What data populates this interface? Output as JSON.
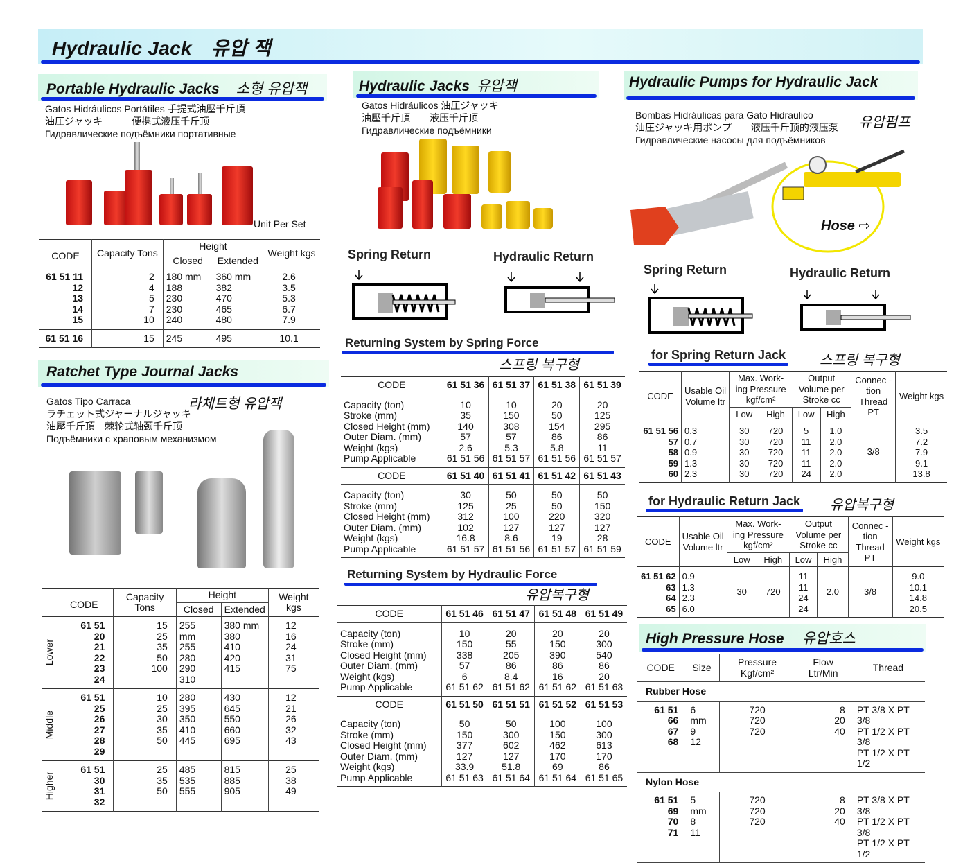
{
  "banner": {
    "title": "Hydraulic Jack",
    "title_kr": "유압 잭"
  },
  "portable": {
    "title": "Portable Hydraulic Jacks",
    "title_kr": "소형 유압잭",
    "sub": [
      "Gatos Hidráulicos Portátiles 手提式油壓千斤頂",
      "油圧ジャッキ　　　便携式液压千斤顶",
      "Гидравлические подъёмники портативные"
    ],
    "unit_note": "Unit Per Set",
    "headers": {
      "code": "CODE",
      "capacity": "Capacity Tons",
      "height": "Height",
      "closed": "Closed",
      "extended": "Extended",
      "weight": "Weight kgs"
    },
    "groups": [
      {
        "rows": [
          {
            "code": "61 51 11",
            "capacity": "2",
            "closed": "180 mm",
            "extended": "360 mm",
            "weight": "2.6"
          },
          {
            "code": "12",
            "capacity": "4",
            "closed": "188",
            "extended": "382",
            "weight": "3.5"
          },
          {
            "code": "13",
            "capacity": "5",
            "closed": "230",
            "extended": "470",
            "weight": "5.3"
          },
          {
            "code": "14",
            "capacity": "7",
            "closed": "230",
            "extended": "465",
            "weight": "6.7"
          },
          {
            "code": "15",
            "capacity": "10",
            "closed": "240",
            "extended": "480",
            "weight": "7.9"
          }
        ]
      },
      {
        "rows": [
          {
            "code": "61 51 16",
            "capacity": "15",
            "closed": "245",
            "extended": "495",
            "weight": "10.1"
          }
        ]
      }
    ]
  },
  "ratchet": {
    "title": "Ratchet Type Journal Jacks",
    "title_kr": "라체트형 유압잭",
    "sub": [
      "Gatos Tipo Carraca",
      "ラチェット式ジャーナルジャッキ",
      "油壓千斤頂　棘轮式轴颈千斤顶",
      "Подъёмники с храповым механизмом"
    ],
    "headers": {
      "code": "CODE",
      "capacity": "Capacity Tons",
      "height": "Height",
      "closed": "Closed",
      "extended": "Extended",
      "weight": "Weight kgs"
    },
    "groups": [
      {
        "label": "Lower",
        "rows": [
          {
            "code": "61 51 20",
            "capacity": "15",
            "closed": "255 mm",
            "extended": "380 mm",
            "weight": "12"
          },
          {
            "code": "21",
            "capacity": "25",
            "closed": "255",
            "extended": "380",
            "weight": "16"
          },
          {
            "code": "22",
            "capacity": "35",
            "closed": "280",
            "extended": "410",
            "weight": "24"
          },
          {
            "code": "23",
            "capacity": "50",
            "closed": "290",
            "extended": "420",
            "weight": "31"
          },
          {
            "code": "24",
            "capacity": "100",
            "closed": "310",
            "extended": "415",
            "weight": "75"
          }
        ]
      },
      {
        "label": "Middle",
        "rows": [
          {
            "code": "61 51 25",
            "capacity": "10",
            "closed": "280",
            "extended": "430",
            "weight": "12"
          },
          {
            "code": "26",
            "capacity": "25",
            "closed": "395",
            "extended": "645",
            "weight": "21"
          },
          {
            "code": "27",
            "capacity": "30",
            "closed": "350",
            "extended": "550",
            "weight": "26"
          },
          {
            "code": "28",
            "capacity": "35",
            "closed": "410",
            "extended": "660",
            "weight": "32"
          },
          {
            "code": "29",
            "capacity": "50",
            "closed": "445",
            "extended": "695",
            "weight": "43"
          }
        ]
      },
      {
        "label": "Higher",
        "rows": [
          {
            "code": "61 51 30",
            "capacity": "25",
            "closed": "485",
            "extended": "815",
            "weight": "25"
          },
          {
            "code": "31",
            "capacity": "35",
            "closed": "535",
            "extended": "885",
            "weight": "38"
          },
          {
            "code": "32",
            "capacity": "50",
            "closed": "555",
            "extended": "905",
            "weight": "49"
          }
        ]
      }
    ]
  },
  "jacks": {
    "title": "Hydraulic Jacks",
    "title_kr": "유압잭",
    "sub": [
      "Gatos Hidráulicos 油圧ジャッキ",
      "油壓千斤頂　　液压千斤顶",
      "Гидравлические подъёмники"
    ],
    "spring_return": "Spring Return",
    "hydraulic_return": "Hydraulic Return",
    "row_labels": [
      "Capacity (ton)",
      "Stroke (mm)",
      "Closed Height (mm)",
      "Outer Diam. (mm)",
      "Weight (kgs)",
      "Pump Applicable"
    ],
    "code_label": "CODE",
    "spring": {
      "title": "Returning System by Spring Force",
      "title_kr": "스프링 복구형",
      "blocks": [
        {
          "codes": [
            "61 51 36",
            "61 51 37",
            "61 51 38",
            "61 51 39"
          ],
          "cols": [
            [
              "10",
              "35",
              "140",
              "57",
              "2.6",
              "61 51 56"
            ],
            [
              "10",
              "150",
              "308",
              "57",
              "5.3",
              "61 51 57"
            ],
            [
              "20",
              "50",
              "154",
              "86",
              "5.8",
              "61 51 56"
            ],
            [
              "20",
              "125",
              "295",
              "86",
              "11",
              "61 51 57"
            ]
          ]
        },
        {
          "codes": [
            "61 51 40",
            "61 51 41",
            "61 51 42",
            "61 51 43"
          ],
          "cols": [
            [
              "30",
              "125",
              "312",
              "102",
              "16.8",
              "61 51 57"
            ],
            [
              "50",
              "25",
              "100",
              "127",
              "8.6",
              "61 51 56"
            ],
            [
              "50",
              "50",
              "220",
              "127",
              "19",
              "61 51 57"
            ],
            [
              "50",
              "150",
              "320",
              "127",
              "28",
              "61 51 59"
            ]
          ]
        }
      ]
    },
    "hydraulic": {
      "title": "Returning System by Hydraulic Force",
      "title_kr": "유압복구형",
      "blocks": [
        {
          "codes": [
            "61 51 46",
            "61 51 47",
            "61 51 48",
            "61 51 49"
          ],
          "cols": [
            [
              "10",
              "150",
              "338",
              "57",
              "6",
              "61 51 62"
            ],
            [
              "20",
              "55",
              "205",
              "86",
              "8.4",
              "61 51 62"
            ],
            [
              "20",
              "150",
              "390",
              "86",
              "16",
              "61 51 62"
            ],
            [
              "20",
              "300",
              "540",
              "86",
              "20",
              "61 51 63"
            ]
          ]
        },
        {
          "codes": [
            "61 51 50",
            "61 51 51",
            "61 51 52",
            "61 51 53"
          ],
          "cols": [
            [
              "50",
              "150",
              "377",
              "127",
              "33.9",
              "61 51 63"
            ],
            [
              "50",
              "300",
              "602",
              "127",
              "51.8",
              "61 51 64"
            ],
            [
              "100",
              "150",
              "462",
              "170",
              "69",
              "61 51 64"
            ],
            [
              "100",
              "300",
              "613",
              "170",
              "86",
              "61 51 65"
            ]
          ]
        }
      ]
    }
  },
  "pumps": {
    "title": "Hydraulic Pumps for Hydraulic Jack",
    "title_kr": "유압펌프",
    "sub": [
      "Bombas Hidráulicas para Gato Hidraulico",
      "油圧ジャッキ用ポンプ　　液压千斤顶的液压泵",
      "Гидравлические насосы для подъёмников"
    ],
    "hose_label": "Hose",
    "spring_return": "Spring Return",
    "hydraulic_return": "Hydraulic Return",
    "headers": {
      "code": "CODE",
      "oil": "Usable Oil Volume ltr",
      "pressure": "Max. Work-ing Pressure kgf/cm²",
      "output": "Output Volume per Stroke cc",
      "thread": "Connec -tion Thread PT",
      "weight": "Weight kgs",
      "low": "Low",
      "high": "High"
    },
    "spring": {
      "title": "for Spring Return Jack",
      "title_kr": "스프링 복구형",
      "thread": "3/8",
      "rows": [
        {
          "code": "61 51 56",
          "oil": "0.3",
          "p_low": "30",
          "p_high": "720",
          "v_low": "5",
          "v_high": "1.0",
          "weight": "3.5"
        },
        {
          "code": "57",
          "oil": "0.7",
          "p_low": "30",
          "p_high": "720",
          "v_low": "11",
          "v_high": "2.0",
          "weight": "7.2"
        },
        {
          "code": "58",
          "oil": "0.9",
          "p_low": "30",
          "p_high": "720",
          "v_low": "11",
          "v_high": "2.0",
          "weight": "7.9"
        },
        {
          "code": "59",
          "oil": "1.3",
          "p_low": "30",
          "p_high": "720",
          "v_low": "11",
          "v_high": "2.0",
          "weight": "9.1"
        },
        {
          "code": "60",
          "oil": "2.3",
          "p_low": "30",
          "p_high": "720",
          "v_low": "24",
          "v_high": "2.0",
          "weight": "13.8"
        }
      ]
    },
    "hydraulic": {
      "title": "for Hydraulic Return Jack",
      "title_kr": "유압복구형",
      "p_low": "30",
      "p_high": "720",
      "v_high": "2.0",
      "thread": "3/8",
      "rows": [
        {
          "code": "61 51 62",
          "oil": "0.9",
          "v_low": "11",
          "weight": "9.0"
        },
        {
          "code": "63",
          "oil": "1.3",
          "v_low": "11",
          "weight": "10.1"
        },
        {
          "code": "64",
          "oil": "2.3",
          "v_low": "24",
          "weight": "14.8"
        },
        {
          "code": "65",
          "oil": "6.0",
          "v_low": "24",
          "weight": "20.5"
        }
      ]
    }
  },
  "hose": {
    "title": "High Pressure Hose",
    "title_kr": "유압호스",
    "headers": {
      "code": "CODE",
      "size": "Size",
      "pressure": "Pressure Kgf/cm²",
      "flow": "Flow Ltr/Min",
      "thread": "Thread"
    },
    "groups": [
      {
        "label": "Rubber Hose",
        "rows": [
          {
            "code": "61 51 66",
            "size": "6 mm",
            "pressure": "720",
            "flow": "8",
            "thread": "PT 3/8 X PT 3/8"
          },
          {
            "code": "67",
            "size": "9",
            "pressure": "720",
            "flow": "20",
            "thread": "PT 1/2 X PT 3/8"
          },
          {
            "code": "68",
            "size": "12",
            "pressure": "720",
            "flow": "40",
            "thread": "PT 1/2 X PT 1/2"
          }
        ]
      },
      {
        "label": "Nylon Hose",
        "rows": [
          {
            "code": "61 51 69",
            "size": "5 mm",
            "pressure": "720",
            "flow": "8",
            "thread": "PT 3/8 X PT 3/8"
          },
          {
            "code": "70",
            "size": "8",
            "pressure": "720",
            "flow": "20",
            "thread": "PT 1/2 X PT 3/8"
          },
          {
            "code": "71",
            "size": "11",
            "pressure": "720",
            "flow": "40",
            "thread": "PT 1/2 X PT 1/2"
          }
        ]
      }
    ]
  },
  "colors": {
    "accent_bar": "#0a2be0",
    "header_bg": "#d3f6e6",
    "banner_bg": "#c6eef7"
  }
}
